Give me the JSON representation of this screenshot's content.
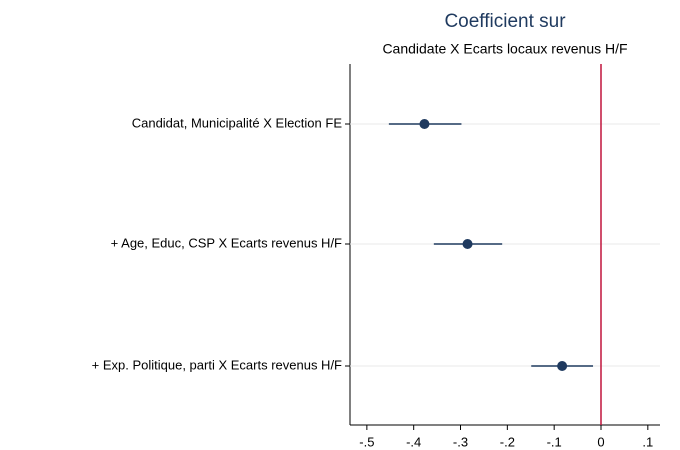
{
  "chart_data": {
    "type": "coefplot",
    "title": "Coefficient sur",
    "subtitle": "Candidate X Ecarts locaux revenus H/F",
    "categories": [
      "Candidat, Municipalité X Election FE",
      "+ Age, Educ, CSP X Ecarts revenus H/F",
      "+ Exp. Politique, parti X Ecarts revenus H/F"
    ],
    "values": [
      -0.377,
      -0.285,
      -0.083
    ],
    "ci_low": [
      -0.453,
      -0.357,
      -0.149
    ],
    "ci_high": [
      -0.298,
      -0.211,
      -0.017
    ],
    "color": "#1f3a5f",
    "xlim": [
      -0.536,
      0.126
    ],
    "xticks": [
      {
        "value": -0.5,
        "label": "-.5"
      },
      {
        "value": -0.4,
        "label": "-.4"
      },
      {
        "value": -0.3,
        "label": "-.3"
      },
      {
        "value": -0.2,
        "label": "-.2"
      },
      {
        "value": -0.1,
        "label": "-.1"
      },
      0,
      {
        "value": 0.1,
        "label": ".1"
      }
    ],
    "refline": 0,
    "refline_color": "#c0143c",
    "grid": true
  }
}
